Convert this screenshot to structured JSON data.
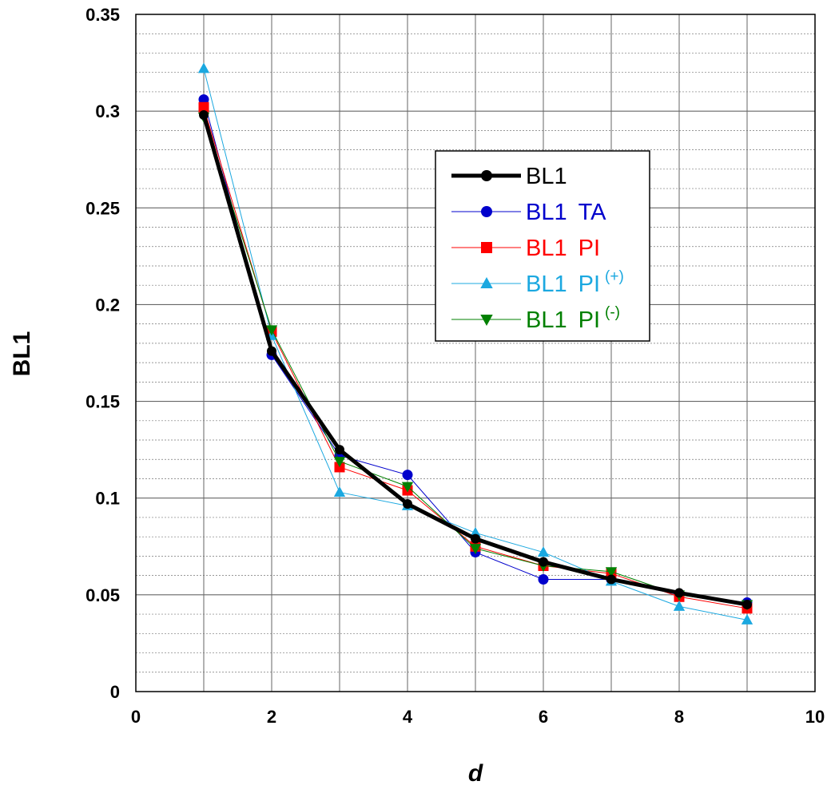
{
  "chart_data": {
    "type": "line",
    "title": "",
    "xlabel": "d",
    "ylabel": "BL1",
    "xlim": [
      0,
      10
    ],
    "ylim": [
      0,
      0.35
    ],
    "x_ticks": [
      "0",
      "2",
      "4",
      "6",
      "8",
      "10"
    ],
    "y_ticks": [
      "0",
      "0.05",
      "0.1",
      "0.15",
      "0.2",
      "0.25",
      "0.3",
      "0.35"
    ],
    "grid": true,
    "legend_position": "upper-center",
    "x": [
      1,
      2,
      3,
      4,
      5,
      6,
      7,
      8,
      9
    ],
    "series": [
      {
        "name": "BL1",
        "name_suffix": "",
        "sup": "",
        "color": "#000000",
        "marker": "circle",
        "values": [
          0.298,
          0.176,
          0.125,
          0.097,
          0.079,
          0.067,
          0.058,
          0.051,
          0.045
        ]
      },
      {
        "name": "BL1",
        "name_suffix": "TA",
        "sup": "",
        "color": "#0000cc",
        "marker": "circle",
        "values": [
          0.306,
          0.174,
          0.122,
          0.112,
          0.072,
          0.058,
          0.058,
          0.05,
          0.046
        ]
      },
      {
        "name": "BL1",
        "name_suffix": "PI",
        "sup": "",
        "color": "#ff0000",
        "marker": "square",
        "values": [
          0.302,
          0.186,
          0.116,
          0.104,
          0.075,
          0.065,
          0.061,
          0.049,
          0.043
        ]
      },
      {
        "name": "BL1",
        "name_suffix": "PI",
        "sup": "(+)",
        "color": "#1ba8e0",
        "marker": "triangle-up",
        "values": [
          0.322,
          0.184,
          0.103,
          0.096,
          0.082,
          0.072,
          0.057,
          0.044,
          0.037
        ]
      },
      {
        "name": "BL1",
        "name_suffix": "PI",
        "sup": "(-)",
        "color": "#008000",
        "marker": "triangle-down",
        "values": [
          0.297,
          0.187,
          0.119,
          0.106,
          0.074,
          0.065,
          0.062,
          0.05,
          0.045
        ]
      }
    ]
  }
}
